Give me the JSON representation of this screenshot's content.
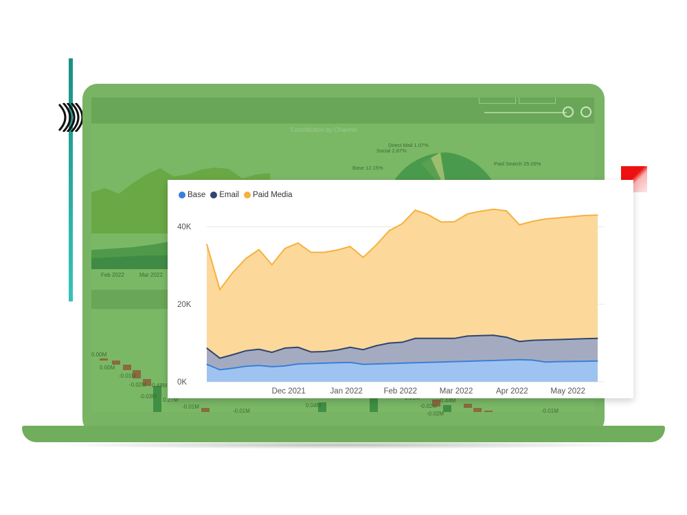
{
  "background_dashboard": {
    "title": "Contribution by Channel",
    "area_chart_x_labels": [
      "Feb 2022",
      "Mar 2022"
    ],
    "pie_labels": [
      "Direct Mail 1.07%",
      "Social 2.87%",
      "Base 12.15%",
      "Paid Search 25.05%"
    ],
    "waterfall_labels": [
      "0.00M",
      "0.00M",
      "-0.01M",
      "-0.02M",
      "-0.03M",
      "0.48M",
      "-0.01M",
      "0.27M",
      "-0.01M",
      "0.04M",
      "0.01M",
      "-0.02M",
      "0.44M",
      "-0.02M",
      "-0.01M"
    ]
  },
  "colors": {
    "base": "#3a7fd8",
    "email": "#2f4570",
    "paid_media": "#f5b13d",
    "laptop": "#78b464",
    "accent_teal": "#28a9a1",
    "accent_red": "#e11111"
  },
  "chart_data": {
    "type": "area",
    "stacked": true,
    "x_labels": [
      "Dec 2021",
      "Jan 2022",
      "Feb 2022",
      "Mar 2022",
      "Apr 2022",
      "May 2022"
    ],
    "y_ticks": [
      "0K",
      "20K",
      "40K"
    ],
    "ylim": [
      0,
      45000
    ],
    "grid": true,
    "legend_position": "top-left",
    "x": [
      "2021-11-01",
      "2021-11-08",
      "2021-11-15",
      "2021-11-22",
      "2021-11-29",
      "2021-12-06",
      "2021-12-13",
      "2021-12-20",
      "2021-12-27",
      "2022-01-03",
      "2022-01-10",
      "2022-01-17",
      "2022-01-24",
      "2022-01-31",
      "2022-02-07",
      "2022-02-14",
      "2022-02-21",
      "2022-02-28",
      "2022-03-07",
      "2022-03-14",
      "2022-03-21",
      "2022-03-28",
      "2022-04-04",
      "2022-04-11",
      "2022-04-18",
      "2022-04-25",
      "2022-05-02",
      "2022-05-09",
      "2022-05-16",
      "2022-05-23",
      "2022-05-30"
    ],
    "series": [
      {
        "name": "Base",
        "values": [
          4500,
          3100,
          3500,
          4000,
          4200,
          3900,
          4100,
          4600,
          4700,
          4800,
          4900,
          5000,
          4500,
          4600,
          4700,
          4800,
          4900,
          5000,
          5100,
          5200,
          5300,
          5400,
          5500,
          5600,
          5700,
          5600,
          5100,
          5200,
          5250,
          5300,
          5350
        ]
      },
      {
        "name": "Email",
        "values": [
          8700,
          6100,
          7000,
          8000,
          8400,
          7600,
          8700,
          8900,
          7700,
          7800,
          8200,
          8900,
          8300,
          9300,
          10000,
          10200,
          11200,
          11200,
          11200,
          11200,
          11800,
          11900,
          12000,
          11500,
          10400,
          10700,
          10800,
          10900,
          11000,
          11100,
          11200
        ]
      },
      {
        "name": "Paid Media",
        "values": [
          35500,
          23800,
          28200,
          31800,
          34100,
          30200,
          34400,
          35800,
          33400,
          33400,
          34000,
          34900,
          32100,
          35300,
          39000,
          40800,
          44300,
          43100,
          41200,
          41300,
          43300,
          44000,
          44500,
          44100,
          40500,
          41400,
          42000,
          42300,
          42600,
          42900,
          43000
        ]
      }
    ]
  }
}
